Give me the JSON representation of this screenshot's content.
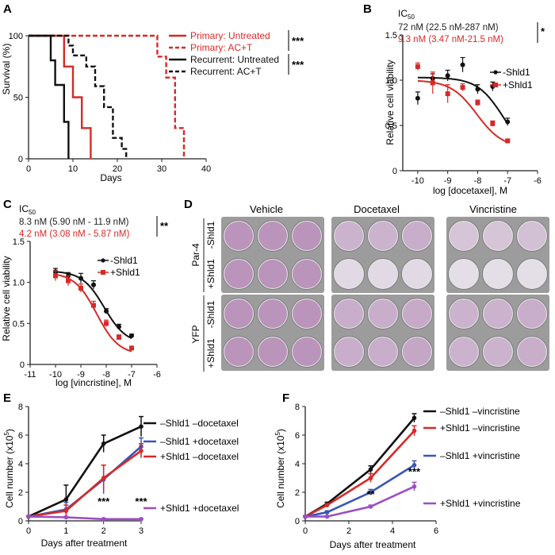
{
  "colors": {
    "red": "#d62a27",
    "black": "#111111",
    "blue": "#3b55b8",
    "purple": "#9b4fc2",
    "well_fill": "#b58bb5",
    "well_light": "#e7e4ea",
    "plate_bg": "#9c9c9c"
  },
  "chart_data": [
    {
      "panel": "A",
      "type": "line",
      "subtype": "step-survival",
      "xlabel": "Days",
      "ylabel": "Survival (%)",
      "xlim": [
        0,
        40
      ],
      "ylim": [
        0,
        100
      ],
      "xticks": [
        0,
        10,
        20,
        30,
        40
      ],
      "yticks": [
        0,
        50,
        100
      ],
      "series": [
        {
          "name": "Primary: Untreated",
          "color": "red",
          "dash": false,
          "x": [
            0,
            8,
            8,
            10,
            10,
            12,
            12,
            14,
            14
          ],
          "y": [
            100,
            100,
            75,
            75,
            50,
            50,
            25,
            25,
            0
          ]
        },
        {
          "name": "Primary: AC+T",
          "color": "red",
          "dash": true,
          "x": [
            0,
            29,
            29,
            31,
            31,
            33,
            33,
            35,
            35
          ],
          "y": [
            100,
            100,
            83,
            83,
            66,
            66,
            25,
            25,
            0
          ]
        },
        {
          "name": "Recurrent: Untreated",
          "color": "black",
          "dash": false,
          "x": [
            0,
            5,
            5,
            6,
            6,
            8,
            8,
            9,
            9
          ],
          "y": [
            100,
            100,
            80,
            80,
            60,
            60,
            30,
            30,
            0
          ]
        },
        {
          "name": "Recurrent: AC+T",
          "color": "black",
          "dash": true,
          "x": [
            0,
            9,
            9,
            10,
            10,
            13,
            13,
            15,
            15,
            17,
            17,
            19,
            19,
            21,
            21,
            22,
            22
          ],
          "y": [
            100,
            100,
            92,
            92,
            84,
            84,
            75,
            75,
            59,
            59,
            42,
            42,
            17,
            17,
            8,
            8,
            0
          ]
        }
      ],
      "significance": [
        "***",
        "***"
      ]
    },
    {
      "panel": "B",
      "type": "scatter",
      "subtype": "dose-response",
      "title": "IC",
      "title_sub": "50",
      "xlabel": "log [docetaxel], M",
      "ylabel": "Relative cell viability",
      "xlim": [
        -10.5,
        -6
      ],
      "ylim": [
        0,
        1.5
      ],
      "xticks": [
        -10,
        -9,
        -8,
        -7,
        -6
      ],
      "yticks": [
        0,
        0.5,
        1.0,
        1.5
      ],
      "ytick_labels": [
        "0",
        "0.5",
        "1.0",
        "1.5"
      ],
      "ic50_lines": [
        "72 nM (22.5 nM-287 nM)",
        "9.3 nM (3.47 nM-21.5 nM)"
      ],
      "significance": "*",
      "series": [
        {
          "name": "-Shld1",
          "color": "black",
          "x": [
            -10,
            -9.5,
            -9,
            -8.5,
            -8,
            -7.5,
            -7
          ],
          "y": [
            0.8,
            1.02,
            1.05,
            1.17,
            0.9,
            0.93,
            0.54
          ],
          "err": [
            0.07,
            0.05,
            0.06,
            0.08,
            0.05,
            0.05,
            0.04
          ],
          "fit": {
            "top": 1.03,
            "bottom": 0.15,
            "logec50": -7.14,
            "hill": 1.0
          }
        },
        {
          "name": "+Shld1",
          "color": "red",
          "x": [
            -10,
            -9.5,
            -9,
            -8.5,
            -8,
            -7.5,
            -7
          ],
          "y": [
            1.15,
            0.97,
            0.85,
            0.92,
            0.75,
            0.52,
            0.33
          ],
          "err": [
            0.04,
            0.12,
            0.1,
            0.04,
            0.03,
            0.03,
            0.02
          ],
          "fit": {
            "top": 1.0,
            "bottom": 0.25,
            "logec50": -8.03,
            "hill": 1.0
          }
        }
      ]
    },
    {
      "panel": "C",
      "type": "scatter",
      "subtype": "dose-response",
      "title": "IC",
      "title_sub": "50",
      "xlabel": "log [vincristine], M",
      "ylabel": "Relative cell viability",
      "xlim": [
        -11,
        -6
      ],
      "ylim": [
        0,
        1.5
      ],
      "xticks": [
        -11,
        -10,
        -9,
        -8,
        -7,
        -6
      ],
      "yticks": [
        0,
        0.5,
        1.0,
        1.5
      ],
      "ytick_labels": [
        "0",
        "0.5",
        "1.0",
        "1.5"
      ],
      "ic50_lines": [
        "8.3 nM (5.90 nM - 11.9 nM)",
        "4.2 nM (3.08 nM - 5.87 nM)"
      ],
      "significance": "**",
      "series": [
        {
          "name": "-Shld1",
          "color": "black",
          "x": [
            -10,
            -9.5,
            -9,
            -8.5,
            -8,
            -7.5,
            -7
          ],
          "y": [
            1.13,
            1.08,
            1.05,
            0.97,
            0.65,
            0.46,
            0.35
          ],
          "err": [
            0.04,
            0.04,
            0.06,
            0.05,
            0.03,
            0.03,
            0.02
          ],
          "fit": {
            "top": 1.14,
            "bottom": 0.25,
            "logec50": -8.08,
            "hill": 1.0
          }
        },
        {
          "name": "+Shld1",
          "color": "red",
          "x": [
            -10,
            -9.5,
            -9,
            -8.5,
            -8,
            -7.5,
            -7
          ],
          "y": [
            1.08,
            1.02,
            0.93,
            0.72,
            0.5,
            0.33,
            0.2
          ],
          "err": [
            0.06,
            0.06,
            0.05,
            0.05,
            0.04,
            0.03,
            0.02
          ],
          "fit": {
            "top": 1.12,
            "bottom": 0.12,
            "logec50": -8.38,
            "hill": 1.0
          }
        }
      ]
    },
    {
      "panel": "E",
      "type": "line",
      "xlabel": "Days after treatment",
      "ylabel": "Cell number (x10",
      "ylabel_sup": "5",
      "ylabel_end": ")",
      "xlim": [
        0,
        3
      ],
      "ylim": [
        0,
        8
      ],
      "xticks": [
        0,
        1,
        2,
        3
      ],
      "yticks": [
        0,
        2,
        4,
        6,
        8
      ],
      "significance": [
        {
          "x": 2,
          "y": 1.1,
          "text": "***"
        },
        {
          "x": 3,
          "y": 1.1,
          "text": "***"
        }
      ],
      "series": [
        {
          "name": "–Shld1 –docetaxel",
          "color": "black",
          "x": [
            0,
            1,
            2,
            3
          ],
          "y": [
            0.3,
            1.5,
            5.4,
            6.6
          ],
          "err": [
            0.05,
            1.0,
            0.6,
            0.7
          ]
        },
        {
          "name": "–Shld1 +docetaxel",
          "color": "blue",
          "x": [
            0,
            1,
            2,
            3
          ],
          "y": [
            0.3,
            0.8,
            2.9,
            5.2
          ],
          "err": [
            0.05,
            0.5,
            1.0,
            0.6
          ]
        },
        {
          "name": "+Shld1 –docetaxel",
          "color": "red",
          "x": [
            0,
            1,
            2,
            3
          ],
          "y": [
            0.3,
            0.7,
            3.0,
            4.9
          ],
          "err": [
            0.05,
            0.4,
            0.9,
            0.5
          ]
        },
        {
          "name": "+Shld1 +docetaxel",
          "color": "purple",
          "x": [
            0,
            1,
            2,
            3
          ],
          "y": [
            0.3,
            0.25,
            0.12,
            0.12
          ],
          "err": [
            0.05,
            0.05,
            0.05,
            0.05
          ]
        }
      ]
    },
    {
      "panel": "F",
      "type": "line",
      "xlabel": "Days after treatment",
      "ylabel": "Cell number (x10",
      "ylabel_sup": "5",
      "ylabel_end": ")",
      "xlim": [
        0,
        6
      ],
      "ylim": [
        0,
        8
      ],
      "xticks": [
        0,
        2,
        4,
        6
      ],
      "yticks": [
        0,
        2,
        4,
        6,
        8
      ],
      "significance": [
        {
          "x": 3,
          "y": 1.6,
          "text": "**"
        },
        {
          "x": 5,
          "y": 3.2,
          "text": "***"
        }
      ],
      "series": [
        {
          "name": "–Shld1 –vincristine",
          "color": "black",
          "x": [
            0,
            1,
            3,
            5
          ],
          "y": [
            0.3,
            1.2,
            3.6,
            7.2
          ],
          "err": [
            0.05,
            0.1,
            0.25,
            0.3
          ]
        },
        {
          "name": "+Shld1 –vincristine",
          "color": "red",
          "x": [
            0,
            1,
            3,
            5
          ],
          "y": [
            0.3,
            1.1,
            3.0,
            6.3
          ],
          "err": [
            0.05,
            0.1,
            0.3,
            0.35
          ]
        },
        {
          "name": "–Shld1 +vincristine",
          "color": "blue",
          "x": [
            0,
            1,
            3,
            5
          ],
          "y": [
            0.3,
            0.6,
            2.0,
            3.9
          ],
          "err": [
            0.05,
            0.1,
            0.2,
            0.3
          ]
        },
        {
          "name": "+Shld1 +vincristine",
          "color": "purple",
          "x": [
            0,
            1,
            3,
            5
          ],
          "y": [
            0.3,
            0.3,
            1.0,
            2.4
          ],
          "err": [
            0.05,
            0.05,
            0.1,
            0.3
          ]
        }
      ]
    }
  ],
  "panel_d": {
    "columns": [
      "Vehicle",
      "Docetaxel",
      "Vincristine"
    ],
    "groups": [
      {
        "name": "Par-4",
        "rows": [
          "-Shld1",
          "+Shld1"
        ]
      },
      {
        "name": "YFP",
        "rows": [
          "-Shld1",
          "+Shld1"
        ]
      }
    ],
    "stain_intensity": [
      [
        [
          0.9,
          0.9,
          0.9
        ],
        [
          0.55,
          0.55,
          0.6
        ],
        [
          0.35,
          0.35,
          0.4
        ]
      ],
      [
        [
          0.9,
          0.9,
          0.9
        ],
        [
          0.1,
          0.1,
          0.1
        ],
        [
          0.05,
          0.05,
          0.05
        ]
      ],
      [
        [
          0.9,
          0.9,
          0.9
        ],
        [
          0.6,
          0.6,
          0.65
        ],
        [
          0.55,
          0.55,
          0.6
        ]
      ],
      [
        [
          0.9,
          0.9,
          0.9
        ],
        [
          0.6,
          0.6,
          0.7
        ],
        [
          0.55,
          0.55,
          0.6
        ]
      ]
    ]
  },
  "panel_letters": [
    "A",
    "B",
    "C",
    "D",
    "E",
    "F"
  ]
}
